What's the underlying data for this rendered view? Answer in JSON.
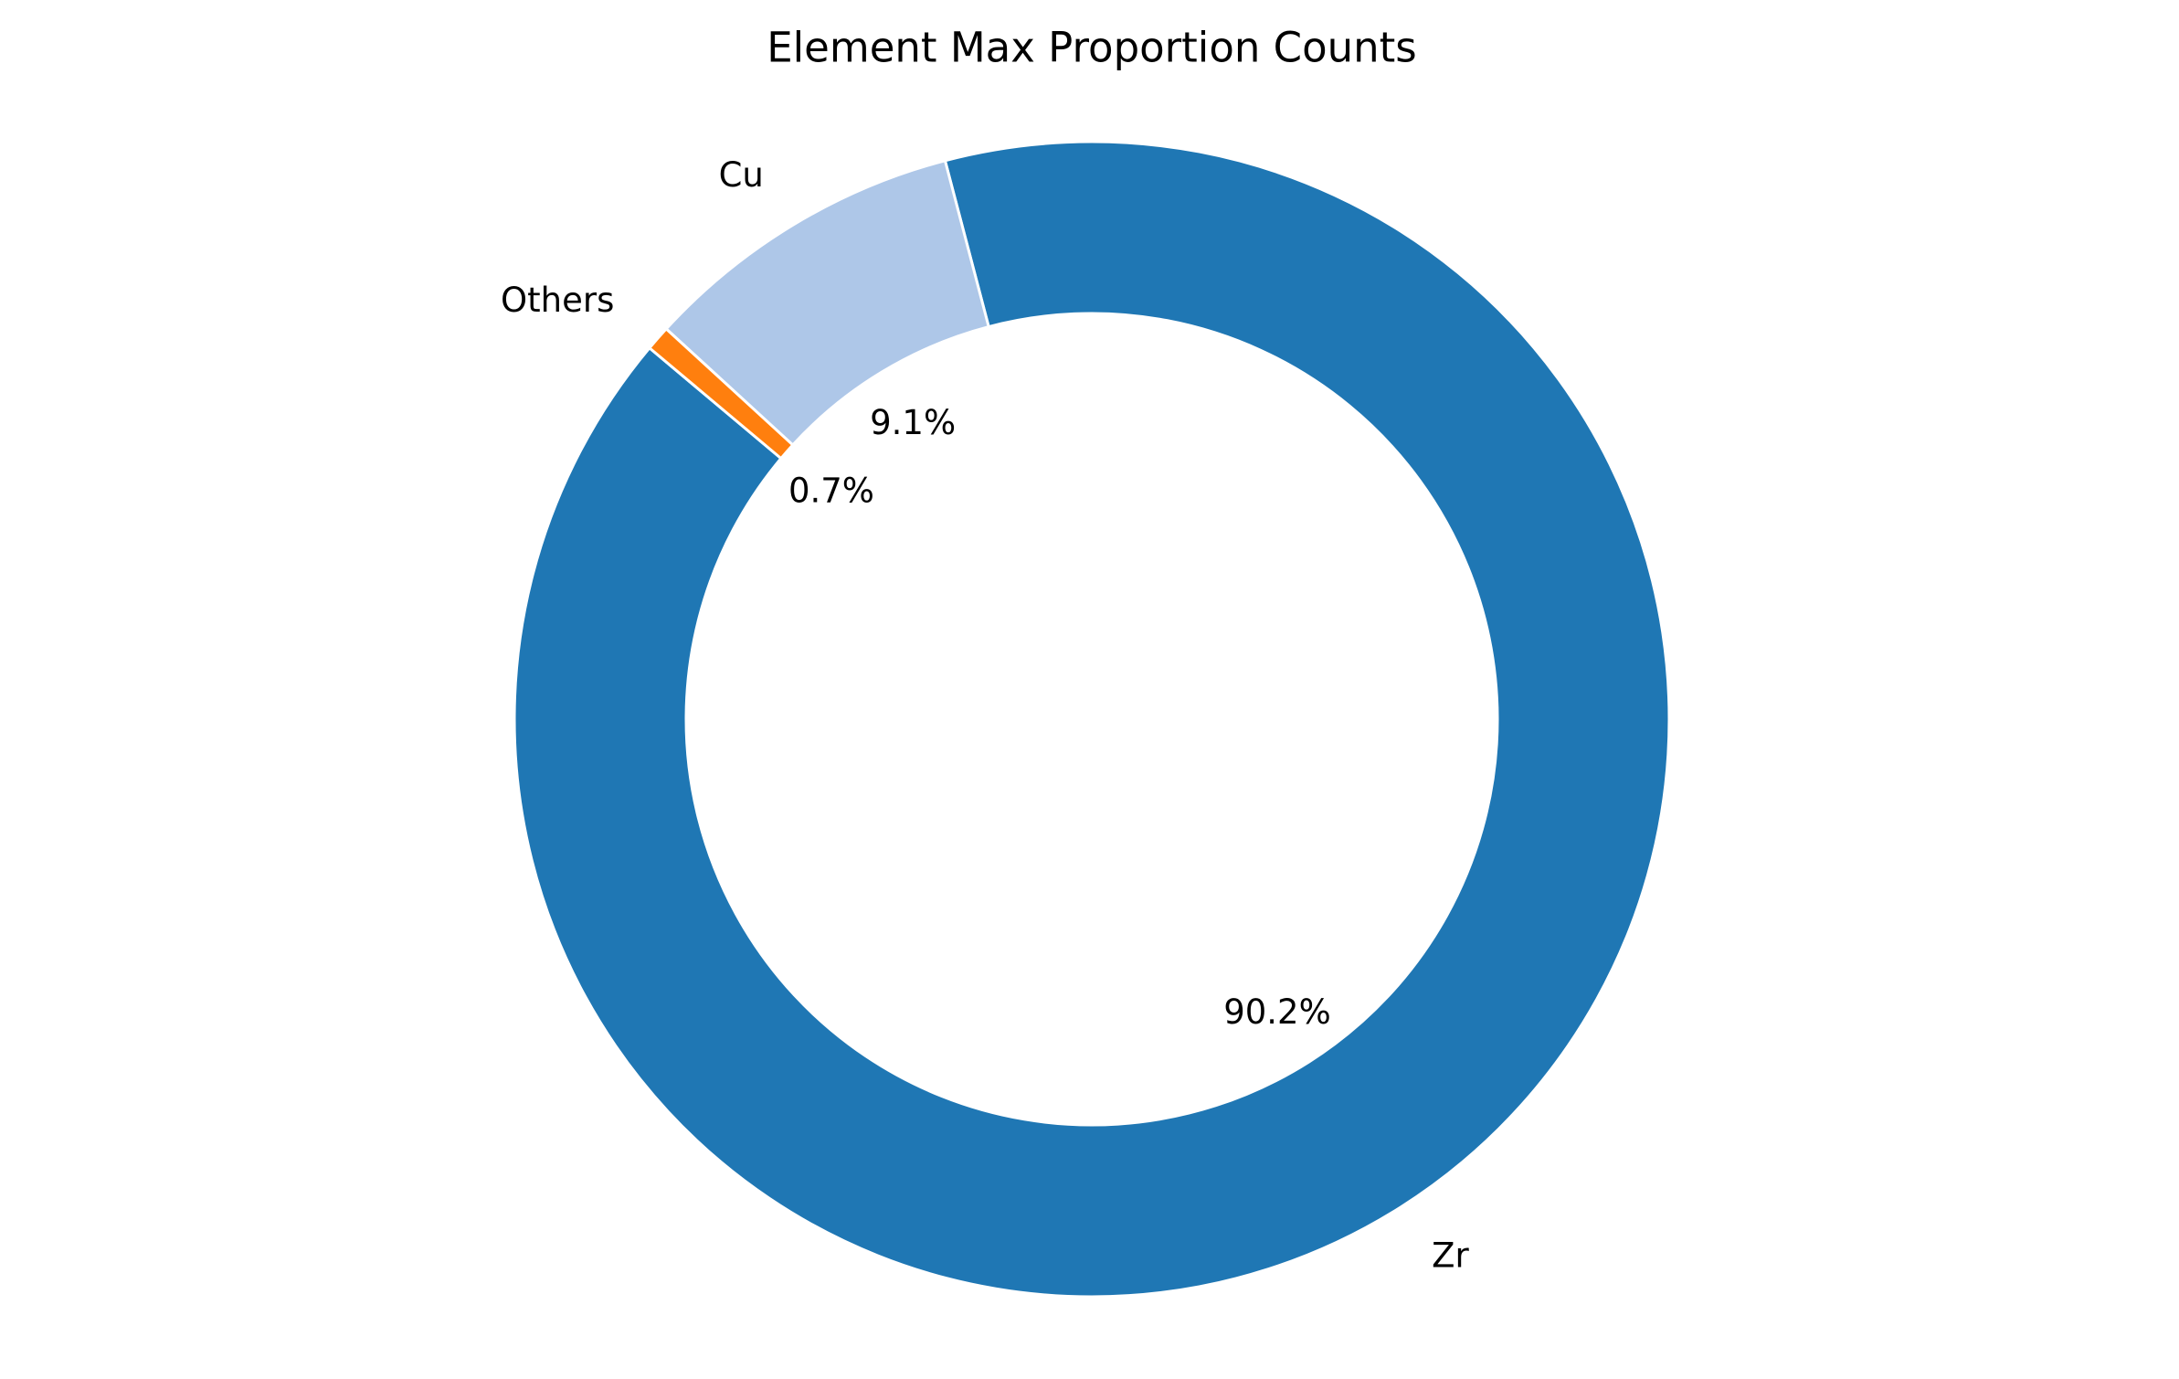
{
  "chart_data": {
    "type": "pie",
    "title": "Element Max Proportion Counts",
    "categories": [
      "Zr",
      "Cu",
      "Others"
    ],
    "values": [
      90.2,
      9.1,
      0.7
    ],
    "percent_labels": [
      "90.2%",
      "9.1%",
      "0.7%"
    ],
    "colors": [
      "#1f77b4",
      "#aec7e8",
      "#ff7f0e"
    ],
    "start_angle_deg": 140,
    "direction": "counterclockwise",
    "donut": true,
    "edge_color": "#ffffff",
    "legend": "none"
  }
}
